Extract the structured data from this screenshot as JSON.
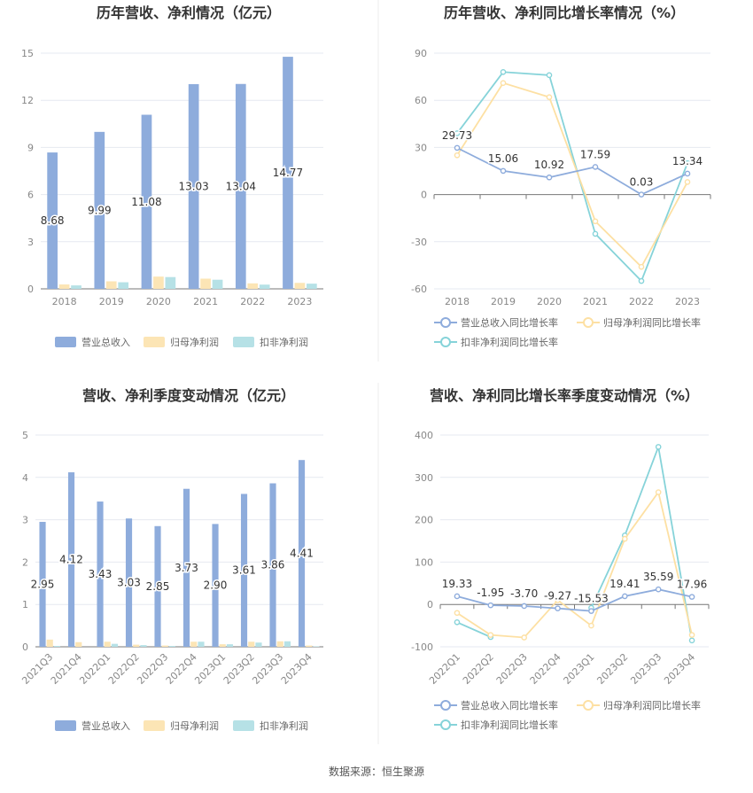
{
  "colors": {
    "revenue": "#8eacdc",
    "parent_profit": "#fce5b5",
    "deducted_profit": "#b6e1e6",
    "rev_line": "#8eacdc",
    "parent_line": "#fde0a3",
    "deducted_line": "#86d3d9",
    "grid": "#e6e9f0",
    "axis_text": "#888888",
    "title_text": "#333333"
  },
  "source_note": "数据来源：恒生聚源",
  "chart_data": [
    {
      "type": "bar",
      "title": "历年营收、净利情况（亿元）",
      "categories": [
        "2018",
        "2019",
        "2020",
        "2021",
        "2022",
        "2023"
      ],
      "ylim": [
        0,
        15
      ],
      "yticks": [
        0,
        3,
        6,
        9,
        12,
        15
      ],
      "series": [
        {
          "name": "营业总收入",
          "values": [
            8.68,
            9.99,
            11.08,
            13.03,
            13.04,
            14.77
          ],
          "labels": [
            "8.68",
            "9.99",
            "11.08",
            "13.03",
            "13.04",
            "14.77"
          ]
        },
        {
          "name": "归母净利润",
          "values": [
            0.28,
            0.48,
            0.78,
            0.65,
            0.35,
            0.38
          ]
        },
        {
          "name": "扣非净利润",
          "values": [
            0.22,
            0.42,
            0.75,
            0.58,
            0.27,
            0.33
          ]
        }
      ],
      "legend": "bottom"
    },
    {
      "type": "line",
      "title": "历年营收、净利同比增长率情况（%）",
      "categories": [
        "2018",
        "2019",
        "2020",
        "2021",
        "2022",
        "2023"
      ],
      "ylim": [
        -60,
        90
      ],
      "yticks": [
        -60,
        -30,
        0,
        30,
        60,
        90
      ],
      "series": [
        {
          "name": "营业总收入同比增长率",
          "values": [
            29.73,
            15.06,
            10.92,
            17.59,
            0.03,
            13.34
          ],
          "labels": [
            "29.73",
            "15.06",
            "10.92",
            "17.59",
            "0.03",
            "13.34"
          ]
        },
        {
          "name": "归母净利润同比增长率",
          "values": [
            25,
            71,
            62,
            -17,
            -46,
            8
          ]
        },
        {
          "name": "扣非净利润同比增长率",
          "values": [
            39,
            78,
            76,
            -25,
            -55,
            20
          ]
        }
      ],
      "legend": "bottom"
    },
    {
      "type": "bar",
      "title": "营收、净利季度变动情况（亿元）",
      "categories": [
        "2021Q3",
        "2021Q4",
        "2022Q1",
        "2022Q2",
        "2022Q3",
        "2022Q4",
        "2023Q1",
        "2023Q2",
        "2023Q3",
        "2023Q4"
      ],
      "ylim": [
        0,
        5
      ],
      "yticks": [
        0,
        1,
        2,
        3,
        4,
        5
      ],
      "series": [
        {
          "name": "营业总收入",
          "values": [
            2.95,
            4.12,
            3.43,
            3.03,
            2.85,
            3.73,
            2.9,
            3.61,
            3.86,
            4.41
          ],
          "labels": [
            "2.95",
            "4.12",
            "3.43",
            "3.03",
            "2.85",
            "3.73",
            "2.90",
            "3.61",
            "3.86",
            "4.41"
          ]
        },
        {
          "name": "归母净利润",
          "values": [
            0.17,
            0.11,
            0.12,
            0.05,
            0.03,
            0.12,
            0.06,
            0.12,
            0.13,
            0.03
          ]
        },
        {
          "name": "扣非净利润",
          "values": [
            0.02,
            0.0,
            0.07,
            0.04,
            0.02,
            0.12,
            0.06,
            0.1,
            0.13,
            0.01
          ]
        }
      ],
      "legend": "bottom"
    },
    {
      "type": "line",
      "title": "营收、净利同比增长率季度变动情况（%）",
      "categories": [
        "2022Q1",
        "2022Q2",
        "2022Q3",
        "2022Q4",
        "2023Q1",
        "2023Q2",
        "2023Q3",
        "2023Q4"
      ],
      "ylim": [
        -100,
        400
      ],
      "yticks": [
        -100,
        0,
        100,
        200,
        300,
        400
      ],
      "series": [
        {
          "name": "营业总收入同比增长率",
          "values": [
            19.33,
            -1.95,
            -3.7,
            -9.27,
            -15.53,
            19.41,
            35.59,
            17.96
          ],
          "labels": [
            "19.33",
            "-1.95",
            "-3.70",
            "-9.27",
            "-15.53",
            "19.41",
            "35.59",
            "17.96"
          ]
        },
        {
          "name": "归母净利润同比增长率",
          "values": [
            -20,
            -72,
            -78,
            10,
            -50,
            155,
            265,
            -72
          ]
        },
        {
          "name": "扣非净利润同比增长率",
          "values": [
            -42,
            -77,
            null,
            null,
            -8,
            163,
            372,
            -85
          ]
        }
      ],
      "legend": "bottom"
    }
  ]
}
